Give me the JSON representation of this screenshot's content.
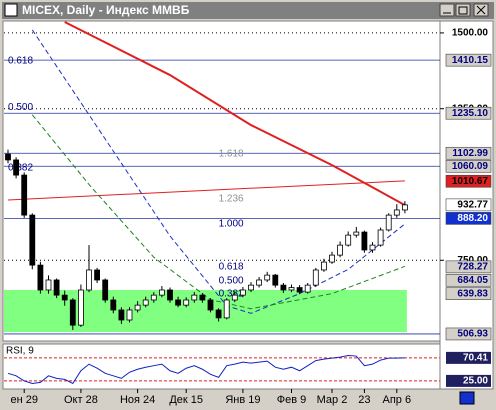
{
  "chart_data": {
    "type": "candlestick",
    "title": "MICEX, Daily - Индекс ММВБ",
    "categories": [
      null,
      null,
      "ен 29",
      null,
      null,
      null,
      null,
      null,
      null,
      "Окт 28",
      null,
      null,
      null,
      null,
      null,
      null,
      "Ноя 24",
      null,
      null,
      null,
      null,
      null,
      "Дек 15",
      null,
      null,
      null,
      null,
      null,
      null,
      "Янв 19",
      null,
      null,
      null,
      null,
      null,
      "Фев 9",
      null,
      null,
      null,
      null,
      "Мар 2",
      null,
      null,
      null,
      "23",
      null,
      null,
      null,
      "Апр 6",
      null
    ],
    "open": [
      1100,
      1081,
      1031,
      899,
      734,
      652,
      685,
      635,
      619,
      536,
      652,
      718,
      685,
      619,
      586,
      553,
      586,
      602,
      619,
      635,
      652,
      619,
      602,
      619,
      635,
      619,
      586,
      560,
      619,
      635,
      652,
      668,
      685,
      701,
      668,
      652,
      660,
      645,
      668,
      718,
      744,
      767,
      800,
      833,
      843,
      784,
      800,
      850,
      899,
      916
    ],
    "high": [
      1115,
      1090,
      1040,
      905,
      745,
      700,
      690,
      650,
      625,
      670,
      800,
      725,
      690,
      630,
      595,
      595,
      615,
      630,
      645,
      665,
      660,
      630,
      628,
      645,
      642,
      625,
      592,
      625,
      648,
      662,
      678,
      695,
      712,
      705,
      675,
      670,
      668,
      675,
      725,
      755,
      778,
      812,
      845,
      860,
      848,
      810,
      858,
      905,
      935,
      945
    ],
    "low": [
      1070,
      1020,
      890,
      720,
      640,
      640,
      625,
      600,
      520,
      530,
      645,
      675,
      610,
      575,
      540,
      545,
      578,
      595,
      610,
      628,
      610,
      595,
      595,
      610,
      610,
      578,
      548,
      555,
      612,
      628,
      645,
      660,
      678,
      660,
      642,
      645,
      638,
      640,
      662,
      712,
      738,
      760,
      795,
      825,
      775,
      775,
      795,
      845,
      890,
      905
    ],
    "close": [
      1081,
      1031,
      899,
      734,
      652,
      685,
      635,
      619,
      536,
      652,
      718,
      685,
      619,
      586,
      553,
      586,
      602,
      619,
      635,
      652,
      619,
      602,
      619,
      635,
      619,
      586,
      560,
      619,
      635,
      652,
      668,
      685,
      701,
      668,
      652,
      660,
      645,
      668,
      718,
      744,
      767,
      800,
      833,
      843,
      784,
      800,
      850,
      899,
      916,
      932.77
    ],
    "up_color": "#ffffff",
    "down_color": "#000000",
    "ylim": [
      487,
      1536
    ],
    "yticks": [
      {
        "value": 1500,
        "label": "1500.00"
      },
      {
        "value": 1250,
        "label": "1250.00"
      },
      {
        "value": 750,
        "label": "750.00"
      }
    ],
    "grid": true,
    "zone": {
      "top": 652,
      "bottom": 513,
      "color": "#80ff80"
    },
    "overlays": [
      {
        "color": "#e02020",
        "width": 2,
        "dash": "none",
        "x": [
          7,
          20,
          30,
          40,
          49
        ],
        "values": [
          1536,
          1361,
          1196,
          1064,
          932
        ]
      },
      {
        "color": "#e02020",
        "width": 1,
        "dash": "none",
        "x": [
          0,
          49
        ],
        "values": [
          949,
          1012
        ]
      },
      {
        "color": "#2030c0",
        "width": 1,
        "dash": "5,3",
        "x": [
          3,
          12,
          20,
          27,
          30,
          36,
          42,
          49
        ],
        "values": [
          1510,
          1150,
          830,
          600,
          575,
          640,
          720,
          870
        ]
      },
      {
        "color": "#208020",
        "width": 1,
        "dash": "5,3",
        "x": [
          3,
          10,
          18,
          25,
          30,
          40,
          49
        ],
        "values": [
          1230,
          1000,
          760,
          620,
          590,
          640,
          730
        ]
      }
    ],
    "price_labels": [
      {
        "value": 1410.15,
        "label": "1410.15",
        "bg": "#d4d0c8",
        "fg": "#000080",
        "line": true
      },
      {
        "value": 1235.1,
        "label": "1235.10",
        "bg": "#d4d0c8",
        "fg": "#000080",
        "line": true
      },
      {
        "value": 1102.99,
        "label": "1102.99",
        "bg": "#d4d0c8",
        "fg": "#000080",
        "line": true
      },
      {
        "value": 1060.09,
        "label": "1060.09",
        "bg": "#d4d0c8",
        "fg": "#000080",
        "line": true
      },
      {
        "value": 1010.67,
        "label": "1010.67",
        "bg": "#e02020",
        "fg": "#000000",
        "line": false
      },
      {
        "value": 932.77,
        "label": "932.77",
        "bg": "#ffffff",
        "fg": "#000000",
        "line": false
      },
      {
        "value": 888.2,
        "label": "888.20",
        "bg": "#1030d0",
        "fg": "#ffffff",
        "line": true
      },
      {
        "value": 728.27,
        "label": "728.27",
        "bg": "#d4d0c8",
        "fg": "#000080",
        "line": false
      },
      {
        "value": 684.05,
        "label": "684.05",
        "bg": "#d4d0c8",
        "fg": "#000080",
        "line": false
      },
      {
        "value": 639.83,
        "label": "639.83",
        "bg": "#d4d0c8",
        "fg": "#000080",
        "line": false
      },
      {
        "value": 506.93,
        "label": "506.93",
        "bg": "#d4d0c8",
        "fg": "#000080",
        "line": true
      }
    ],
    "fib_labels": [
      {
        "label": "0.618",
        "value": 1388,
        "x": 0,
        "color": "#000080"
      },
      {
        "label": "0.500",
        "value": 1235,
        "x": 0,
        "color": "#000080"
      },
      {
        "label": "0.382",
        "value": 1035,
        "x": 0,
        "color": "#000080"
      },
      {
        "label": "1.618",
        "value": 1081,
        "x": 26,
        "color": "#909090"
      },
      {
        "label": "1.236",
        "value": 932,
        "x": 26,
        "color": "#909090"
      },
      {
        "label": "1.000",
        "value": 850,
        "x": 26,
        "color": "#000080"
      },
      {
        "label": "0.618",
        "value": 708,
        "x": 26,
        "color": "#000080"
      },
      {
        "label": "0.500",
        "value": 662,
        "x": 26,
        "color": "#000080"
      },
      {
        "label": "0.382",
        "value": 619,
        "x": 26,
        "color": "#000080"
      }
    ],
    "rsi": {
      "title": "RSI, 9",
      "values": [
        40,
        35,
        25,
        20,
        22,
        35,
        30,
        28,
        20,
        45,
        58,
        50,
        40,
        35,
        30,
        42,
        48,
        52,
        55,
        58,
        45,
        40,
        50,
        55,
        48,
        38,
        32,
        55,
        58,
        62,
        60,
        62,
        64,
        52,
        48,
        52,
        45,
        55,
        65,
        68,
        70,
        72,
        75,
        74,
        55,
        58,
        66,
        70,
        70,
        70.41
      ],
      "ylim": [
        11,
        82
      ],
      "color": "#1020c0",
      "labels": [
        {
          "value": 70.41,
          "label": "70.41"
        },
        {
          "value": 25,
          "label": "25.00"
        }
      ]
    }
  }
}
